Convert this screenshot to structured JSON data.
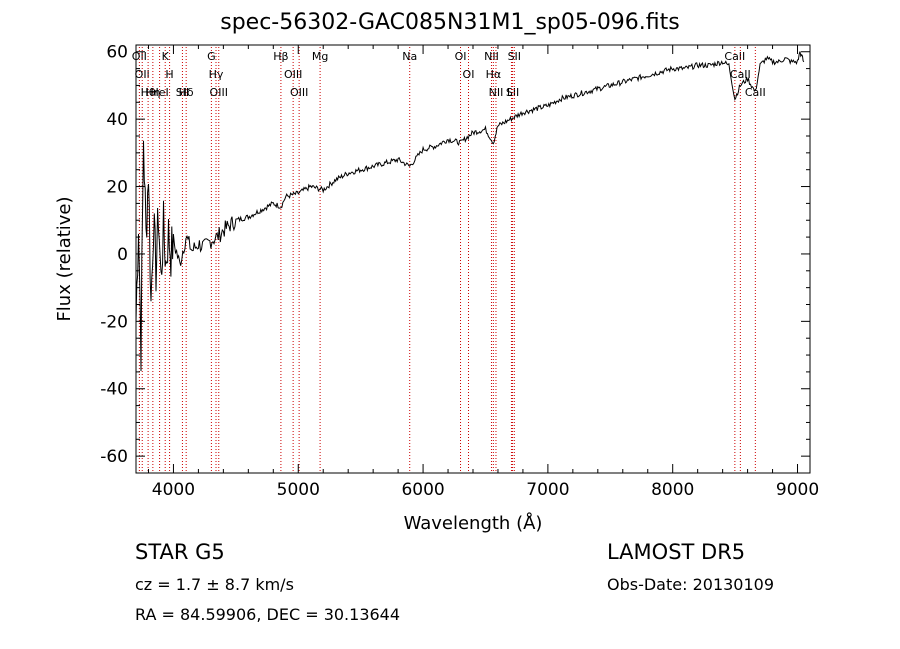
{
  "header": {
    "title": "spec-56302-GAC085N31M1_sp05-096.fits"
  },
  "info": {
    "class": "STAR    G5",
    "cz": "cz = 1.7 ± 8.7 km/s",
    "radec": "RA =  84.59906, DEC =  30.13644",
    "survey": "LAMOST  DR5",
    "obs_date": "Obs-Date: 20130109"
  },
  "colors": {
    "spectrum": "#000000",
    "line_markers": "#cc0000"
  },
  "chart_data": {
    "type": "line",
    "title": "spec-56302-GAC085N31M1_sp05-096.fits",
    "xlabel": "Wavelength (Å)",
    "ylabel": "Flux (relative)",
    "xlim": [
      3700,
      9100
    ],
    "ylim": [
      -65,
      62
    ],
    "x_ticks": [
      4000,
      5000,
      6000,
      7000,
      8000,
      9000
    ],
    "y_ticks": [
      -60,
      -40,
      -20,
      0,
      20,
      40,
      60
    ],
    "grid": false,
    "series": [
      {
        "x": [
          3700,
          3720,
          3740,
          3760,
          3780,
          3800,
          3820,
          3840,
          3860,
          3880,
          3900,
          3920,
          3940,
          3960,
          3980,
          4000,
          4050,
          4100,
          4150,
          4200,
          4250,
          4300,
          4350,
          4400,
          4500,
          4600,
          4700,
          4800,
          4861,
          4900,
          5000,
          5100,
          5200,
          5300,
          5400,
          5500,
          5600,
          5700,
          5800,
          5893,
          6000,
          6100,
          6200,
          6300,
          6400,
          6500,
          6563,
          6600,
          6700,
          6800,
          6900,
          7000,
          7100,
          7200,
          7300,
          7400,
          7500,
          7600,
          7700,
          7800,
          7900,
          8000,
          8100,
          8200,
          8300,
          8400,
          8450,
          8498,
          8542,
          8600,
          8662,
          8700,
          8750,
          8800,
          8850,
          8900,
          8950,
          9000,
          9020,
          9040,
          9050
        ],
        "y": [
          -20,
          10,
          -28,
          35,
          5,
          25,
          -15,
          10,
          -5,
          12,
          -8,
          8,
          -3,
          6,
          0,
          4,
          -3,
          5,
          1,
          3,
          2,
          4,
          5,
          7,
          10,
          11,
          13,
          15,
          14,
          17,
          18,
          20,
          19,
          22,
          24,
          25,
          26,
          27,
          28,
          26,
          31,
          32,
          34,
          33,
          36,
          37,
          33,
          38,
          40,
          42,
          43,
          44,
          46,
          47,
          48,
          49,
          50,
          51,
          52,
          53,
          54,
          55,
          55,
          56,
          56,
          57,
          56,
          46,
          50,
          52,
          48,
          56,
          58,
          57,
          57,
          58,
          57,
          57,
          60,
          58,
          57
        ]
      }
    ],
    "line_markers": [
      {
        "wave": 3727,
        "label": "OII"
      },
      {
        "wave": 3750,
        "label": "OII"
      },
      {
        "wave": 3797,
        "label": "Hθ"
      },
      {
        "wave": 3835,
        "label": "Hη"
      },
      {
        "wave": 3889,
        "label": "HeI"
      },
      {
        "wave": 3934,
        "label": "K"
      },
      {
        "wave": 3969,
        "label": "H"
      },
      {
        "wave": 4072,
        "label": "SII"
      },
      {
        "wave": 4102,
        "label": "Hδ"
      },
      {
        "wave": 4304,
        "label": "G"
      },
      {
        "wave": 4341,
        "label": "Hγ"
      },
      {
        "wave": 4363,
        "label": "OIII"
      },
      {
        "wave": 4861,
        "label": "Hβ"
      },
      {
        "wave": 4959,
        "label": "OIII"
      },
      {
        "wave": 5007,
        "label": "OIII"
      },
      {
        "wave": 5175,
        "label": "Mg"
      },
      {
        "wave": 5893,
        "label": "Na"
      },
      {
        "wave": 6300,
        "label": "OI"
      },
      {
        "wave": 6364,
        "label": "OI"
      },
      {
        "wave": 6548,
        "label": "NII"
      },
      {
        "wave": 6563,
        "label": "Hα"
      },
      {
        "wave": 6584,
        "label": "NII"
      },
      {
        "wave": 6708,
        "label": "Li"
      },
      {
        "wave": 6717,
        "label": "SII"
      },
      {
        "wave": 6731,
        "label": "SII"
      },
      {
        "wave": 8498,
        "label": "CaII"
      },
      {
        "wave": 8542,
        "label": "CaII"
      },
      {
        "wave": 8662,
        "label": "CaII"
      }
    ]
  }
}
